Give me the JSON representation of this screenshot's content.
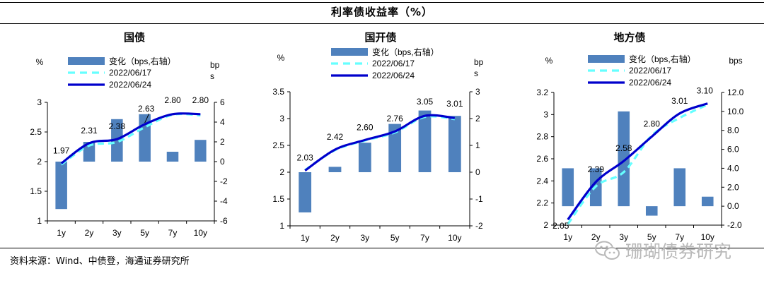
{
  "title": "利率债收益率（%）",
  "source": "资料来源：Wind、中债登，海通证券研究所",
  "watermark": "珊瑚债券研究",
  "colors": {
    "bar": "#4f81bd",
    "line_old": "#66ffff",
    "line_new": "#0000cc"
  },
  "chart_data": [
    {
      "type": "bar",
      "title": "国债",
      "categories": [
        "1y",
        "2y",
        "3y",
        "5y",
        "7y",
        "10y"
      ],
      "left_axis_unit": "%",
      "right_axis_unit": "bps",
      "ylim": [
        1,
        3
      ],
      "yticks": [
        "1",
        "1.5",
        "2",
        "2.5",
        "3"
      ],
      "y2lim": [
        -6,
        6
      ],
      "y2ticks": [
        "-6",
        "-4",
        "-2",
        "0",
        "2",
        "4",
        "6"
      ],
      "legend_position": "top",
      "series": [
        {
          "name": "变化（bps,右轴）",
          "kind": "bar",
          "axis": "right",
          "values": [
            -4.8,
            2.0,
            4.3,
            4.8,
            1.0,
            2.2
          ]
        },
        {
          "name": "2022/06/17",
          "kind": "line",
          "style": "dashed",
          "axis": "left",
          "values": [
            1.95,
            2.27,
            2.33,
            2.58,
            2.79,
            2.78
          ]
        },
        {
          "name": "2022/06/24",
          "kind": "line",
          "style": "solid",
          "axis": "left",
          "values": [
            1.97,
            2.31,
            2.38,
            2.63,
            2.8,
            2.8
          ]
        }
      ],
      "data_labels": [
        "1.97",
        "2.31",
        "2.38",
        "2.63",
        "2.80",
        "2.80"
      ]
    },
    {
      "type": "bar",
      "title": "国开债",
      "categories": [
        "1y",
        "2y",
        "3y",
        "5y",
        "7y",
        "10y"
      ],
      "left_axis_unit": "%",
      "right_axis_unit": "bps",
      "ylim": [
        1,
        3.5
      ],
      "yticks": [
        "1",
        "1.5",
        "2",
        "2.5",
        "3",
        "3.5"
      ],
      "y2lim": [
        -2,
        3
      ],
      "y2ticks": [
        "-2",
        "-1",
        "0",
        "1",
        "2",
        "3"
      ],
      "legend_position": "top",
      "series": [
        {
          "name": "变化（bps,右轴）",
          "kind": "bar",
          "axis": "right",
          "values": [
            -1.5,
            0.2,
            1.1,
            1.8,
            2.3,
            2.1
          ]
        },
        {
          "name": "2022/06/17",
          "kind": "line",
          "style": "dashed",
          "axis": "left",
          "values": [
            2.04,
            2.41,
            2.59,
            2.74,
            3.03,
            2.99
          ]
        },
        {
          "name": "2022/06/24",
          "kind": "line",
          "style": "solid",
          "axis": "left",
          "values": [
            2.03,
            2.42,
            2.6,
            2.76,
            3.05,
            3.01
          ]
        }
      ],
      "data_labels": [
        "2.03",
        "2.42",
        "2.60",
        "2.76",
        "3.05",
        "3.01"
      ]
    },
    {
      "type": "bar",
      "title": "地方债",
      "categories": [
        "1y",
        "2y",
        "3y",
        "5y",
        "7y",
        "10y"
      ],
      "left_axis_unit": "%",
      "right_axis_unit": "bps",
      "ylim": [
        2,
        3.2
      ],
      "yticks": [
        "2",
        "2.2",
        "2.4",
        "2.6",
        "2.8",
        "3",
        "3.2"
      ],
      "y2lim": [
        -2,
        12
      ],
      "y2ticks": [
        "-2.0",
        "0.0",
        "2.0",
        "4.0",
        "6.0",
        "8.0",
        "10.0",
        "12.0"
      ],
      "legend_position": "top",
      "series": [
        {
          "name": "变化（bps,右轴）",
          "kind": "bar",
          "axis": "right",
          "values": [
            4.0,
            4.0,
            10.0,
            -1.0,
            4.0,
            1.0
          ]
        },
        {
          "name": "2022/06/17",
          "kind": "line",
          "style": "dashed",
          "axis": "left",
          "values": [
            2.01,
            2.35,
            2.48,
            2.81,
            2.97,
            3.09
          ]
        },
        {
          "name": "2022/06/24",
          "kind": "line",
          "style": "solid",
          "axis": "left",
          "values": [
            2.05,
            2.39,
            2.58,
            2.8,
            3.01,
            3.1
          ]
        }
      ],
      "data_labels": [
        "2.05",
        "2.39",
        "2.58",
        "2.80",
        "3.01",
        "3.10"
      ]
    }
  ]
}
